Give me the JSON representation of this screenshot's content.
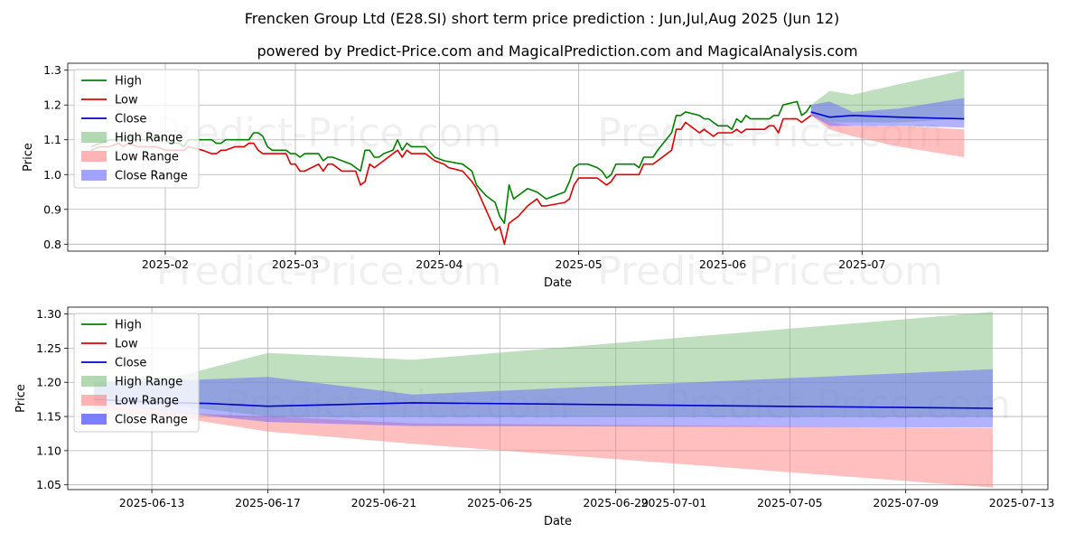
{
  "figure": {
    "title": "Frencken Group Ltd (E28.SI) short term price prediction : Jun,Jul,Aug 2025 (Jun 12)",
    "subtitle": "powered by Predict-Price.com and MagicalPrediction.com and MagicalAnalysis.com",
    "watermark": "Predict-Price.com",
    "colors": {
      "high": "#008000",
      "low": "#e00000",
      "close": "#0000cc",
      "high_range": "#80c080",
      "low_range": "#ff8080",
      "close_range": "#6666ff"
    }
  },
  "chart_data": [
    {
      "type": "line",
      "name": "history",
      "xlabel": "Date",
      "ylabel": "Price",
      "xlim": [
        -21,
        190
      ],
      "ylim": [
        0.78,
        1.32
      ],
      "xticks": [
        {
          "pos": 0,
          "label": "2025-02"
        },
        {
          "pos": 28,
          "label": "2025-03"
        },
        {
          "pos": 59,
          "label": "2025-04"
        },
        {
          "pos": 89,
          "label": "2025-05"
        },
        {
          "pos": 120,
          "label": "2025-06"
        },
        {
          "pos": 150,
          "label": "2025-07"
        }
      ],
      "yticks": [
        0.8,
        0.9,
        1.0,
        1.1,
        1.2,
        1.3
      ],
      "legend": [
        "High",
        "Low",
        "Close",
        "High Range",
        "Low Range",
        "Close Range"
      ],
      "legend_location": "upper left",
      "high": [
        [
          -16,
          1.08
        ],
        [
          -14,
          1.09
        ],
        [
          -12,
          1.1
        ],
        [
          -10,
          1.1
        ],
        [
          -9,
          1.1
        ],
        [
          -8,
          1.11
        ],
        [
          -6,
          1.1
        ],
        [
          -4,
          1.1
        ],
        [
          -2,
          1.11
        ],
        [
          0,
          1.1
        ],
        [
          1,
          1.09
        ],
        [
          3,
          1.09
        ],
        [
          4,
          1.08
        ],
        [
          5,
          1.1
        ],
        [
          8,
          1.1
        ],
        [
          10,
          1.1
        ],
        [
          11,
          1.09
        ],
        [
          12,
          1.09
        ],
        [
          13,
          1.1
        ],
        [
          15,
          1.1
        ],
        [
          17,
          1.1
        ],
        [
          18,
          1.1
        ],
        [
          19,
          1.12
        ],
        [
          20,
          1.12
        ],
        [
          21,
          1.11
        ],
        [
          22,
          1.08
        ],
        [
          23,
          1.07
        ],
        [
          26,
          1.07
        ],
        [
          27,
          1.06
        ],
        [
          28,
          1.06
        ],
        [
          29,
          1.05
        ],
        [
          30,
          1.06
        ],
        [
          33,
          1.06
        ],
        [
          34,
          1.04
        ],
        [
          35,
          1.05
        ],
        [
          36,
          1.05
        ],
        [
          38,
          1.04
        ],
        [
          40,
          1.03
        ],
        [
          41,
          1.02
        ],
        [
          42,
          1.01
        ],
        [
          43,
          1.07
        ],
        [
          44,
          1.07
        ],
        [
          45,
          1.05
        ],
        [
          46,
          1.05
        ],
        [
          47,
          1.06
        ],
        [
          49,
          1.07
        ],
        [
          50,
          1.1
        ],
        [
          51,
          1.07
        ],
        [
          52,
          1.09
        ],
        [
          53,
          1.08
        ],
        [
          56,
          1.08
        ],
        [
          58,
          1.05
        ],
        [
          60,
          1.04
        ],
        [
          64,
          1.03
        ],
        [
          66,
          1.01
        ],
        [
          67,
          0.97
        ],
        [
          69,
          0.94
        ],
        [
          71,
          0.92
        ],
        [
          72,
          0.88
        ],
        [
          73,
          0.86
        ],
        [
          74,
          0.97
        ],
        [
          75,
          0.93
        ],
        [
          76,
          0.94
        ],
        [
          78,
          0.96
        ],
        [
          80,
          0.95
        ],
        [
          81,
          0.94
        ],
        [
          82,
          0.93
        ],
        [
          86,
          0.95
        ],
        [
          87,
          0.98
        ],
        [
          88,
          1.02
        ],
        [
          89,
          1.03
        ],
        [
          91,
          1.03
        ],
        [
          93,
          1.02
        ],
        [
          94,
          1.01
        ],
        [
          95,
          0.99
        ],
        [
          96,
          1.0
        ],
        [
          97,
          1.03
        ],
        [
          100,
          1.03
        ],
        [
          101,
          1.03
        ],
        [
          102,
          1.02
        ],
        [
          103,
          1.05
        ],
        [
          105,
          1.05
        ],
        [
          106,
          1.07
        ],
        [
          109,
          1.12
        ],
        [
          110,
          1.17
        ],
        [
          111,
          1.17
        ],
        [
          112,
          1.18
        ],
        [
          115,
          1.17
        ],
        [
          116,
          1.16
        ],
        [
          117,
          1.16
        ],
        [
          118,
          1.15
        ],
        [
          119,
          1.14
        ],
        [
          121,
          1.14
        ],
        [
          122,
          1.13
        ],
        [
          123,
          1.16
        ],
        [
          124,
          1.15
        ],
        [
          125,
          1.17
        ],
        [
          126,
          1.16
        ],
        [
          129,
          1.16
        ],
        [
          130,
          1.16
        ],
        [
          131,
          1.17
        ],
        [
          132,
          1.17
        ],
        [
          133,
          1.2
        ],
        [
          136,
          1.21
        ],
        [
          137,
          1.17
        ],
        [
          138,
          1.18
        ],
        [
          139,
          1.2
        ]
      ],
      "low": [
        [
          -16,
          1.07
        ],
        [
          -14,
          1.08
        ],
        [
          -12,
          1.08
        ],
        [
          -10,
          1.09
        ],
        [
          -9,
          1.08
        ],
        [
          -8,
          1.09
        ],
        [
          -6,
          1.08
        ],
        [
          -4,
          1.08
        ],
        [
          -2,
          1.08
        ],
        [
          0,
          1.07
        ],
        [
          1,
          1.07
        ],
        [
          3,
          1.07
        ],
        [
          4,
          1.07
        ],
        [
          5,
          1.08
        ],
        [
          8,
          1.07
        ],
        [
          10,
          1.06
        ],
        [
          11,
          1.06
        ],
        [
          12,
          1.07
        ],
        [
          13,
          1.07
        ],
        [
          15,
          1.08
        ],
        [
          17,
          1.08
        ],
        [
          18,
          1.09
        ],
        [
          19,
          1.09
        ],
        [
          20,
          1.07
        ],
        [
          21,
          1.06
        ],
        [
          22,
          1.06
        ],
        [
          23,
          1.06
        ],
        [
          26,
          1.06
        ],
        [
          27,
          1.03
        ],
        [
          28,
          1.03
        ],
        [
          29,
          1.01
        ],
        [
          30,
          1.01
        ],
        [
          33,
          1.03
        ],
        [
          34,
          1.01
        ],
        [
          35,
          1.03
        ],
        [
          36,
          1.03
        ],
        [
          38,
          1.01
        ],
        [
          40,
          1.01
        ],
        [
          41,
          1.01
        ],
        [
          42,
          0.97
        ],
        [
          43,
          0.98
        ],
        [
          44,
          1.03
        ],
        [
          45,
          1.02
        ],
        [
          46,
          1.03
        ],
        [
          47,
          1.04
        ],
        [
          49,
          1.06
        ],
        [
          50,
          1.07
        ],
        [
          51,
          1.05
        ],
        [
          52,
          1.07
        ],
        [
          53,
          1.06
        ],
        [
          56,
          1.06
        ],
        [
          58,
          1.04
        ],
        [
          60,
          1.03
        ],
        [
          61,
          1.02
        ],
        [
          64,
          1.01
        ],
        [
          66,
          0.98
        ],
        [
          67,
          0.96
        ],
        [
          69,
          0.9
        ],
        [
          71,
          0.84
        ],
        [
          72,
          0.85
        ],
        [
          73,
          0.8
        ],
        [
          74,
          0.86
        ],
        [
          75,
          0.87
        ],
        [
          76,
          0.88
        ],
        [
          78,
          0.91
        ],
        [
          80,
          0.93
        ],
        [
          81,
          0.91
        ],
        [
          82,
          0.91
        ],
        [
          86,
          0.92
        ],
        [
          87,
          0.93
        ],
        [
          88,
          0.97
        ],
        [
          89,
          0.99
        ],
        [
          91,
          0.99
        ],
        [
          93,
          0.99
        ],
        [
          94,
          0.98
        ],
        [
          95,
          0.97
        ],
        [
          96,
          0.98
        ],
        [
          97,
          1.0
        ],
        [
          100,
          1.0
        ],
        [
          101,
          1.0
        ],
        [
          102,
          1.0
        ],
        [
          103,
          1.03
        ],
        [
          105,
          1.03
        ],
        [
          106,
          1.04
        ],
        [
          109,
          1.07
        ],
        [
          110,
          1.13
        ],
        [
          111,
          1.13
        ],
        [
          112,
          1.15
        ],
        [
          115,
          1.12
        ],
        [
          116,
          1.13
        ],
        [
          117,
          1.12
        ],
        [
          118,
          1.11
        ],
        [
          119,
          1.12
        ],
        [
          121,
          1.12
        ],
        [
          122,
          1.12
        ],
        [
          123,
          1.13
        ],
        [
          124,
          1.12
        ],
        [
          125,
          1.13
        ],
        [
          126,
          1.13
        ],
        [
          129,
          1.13
        ],
        [
          130,
          1.14
        ],
        [
          131,
          1.14
        ],
        [
          132,
          1.12
        ],
        [
          133,
          1.16
        ],
        [
          136,
          1.16
        ],
        [
          137,
          1.15
        ],
        [
          138,
          1.16
        ],
        [
          139,
          1.17
        ]
      ],
      "close": [
        [
          139,
          1.18
        ],
        [
          143,
          1.165
        ],
        [
          148,
          1.17
        ],
        [
          158,
          1.165
        ],
        [
          172,
          1.16
        ]
      ],
      "high_range": {
        "x": [
          139,
          143,
          148,
          158,
          172
        ],
        "upper": [
          1.2,
          1.24,
          1.23,
          1.26,
          1.3
        ],
        "lower": [
          1.17,
          1.15,
          1.15,
          1.15,
          1.16
        ]
      },
      "low_range": {
        "x": [
          139,
          143,
          148,
          158,
          172
        ],
        "upper": [
          1.18,
          1.15,
          1.14,
          1.14,
          1.13
        ],
        "lower": [
          1.17,
          1.13,
          1.11,
          1.08,
          1.05
        ]
      },
      "close_range": {
        "x": [
          139,
          143,
          148,
          158,
          172
        ],
        "upper": [
          1.2,
          1.21,
          1.18,
          1.19,
          1.22
        ],
        "lower": [
          1.17,
          1.14,
          1.14,
          1.14,
          1.135
        ]
      }
    },
    {
      "type": "line",
      "name": "forecast",
      "xlabel": "Date",
      "ylabel": "Price",
      "xlim": [
        -1.9,
        31.9
      ],
      "ylim": [
        1.043,
        1.31
      ],
      "xticks": [
        {
          "pos": 1,
          "label": "2025-06-13"
        },
        {
          "pos": 5,
          "label": "2025-06-17"
        },
        {
          "pos": 9,
          "label": "2025-06-21"
        },
        {
          "pos": 13,
          "label": "2025-06-25"
        },
        {
          "pos": 17,
          "label": "2025-06-29"
        },
        {
          "pos": 19,
          "label": "2025-07-01"
        },
        {
          "pos": 23,
          "label": "2025-07-05"
        },
        {
          "pos": 27,
          "label": "2025-07-09"
        },
        {
          "pos": 31,
          "label": "2025-07-13"
        }
      ],
      "yticks": [
        1.05,
        1.1,
        1.15,
        1.2,
        1.25,
        1.3
      ],
      "legend": [
        "High",
        "Low",
        "Close",
        "High Range",
        "Low Range",
        "Close Range"
      ],
      "legend_location": "upper left",
      "high": [],
      "low": [],
      "close": [
        [
          -1,
          1.175
        ],
        [
          0,
          1.173
        ],
        [
          1,
          1.171
        ],
        [
          2,
          1.17
        ],
        [
          3,
          1.169
        ],
        [
          4,
          1.167
        ],
        [
          5,
          1.165
        ],
        [
          10,
          1.17
        ],
        [
          30,
          1.162
        ]
      ],
      "high_range": {
        "x": [
          -1,
          2,
          5,
          10,
          30
        ],
        "upper": [
          1.2,
          1.21,
          1.243,
          1.233,
          1.303
        ],
        "lower": [
          1.18,
          1.165,
          1.15,
          1.15,
          1.15
        ]
      },
      "low_range": {
        "x": [
          -1,
          2,
          5,
          10,
          30
        ],
        "upper": [
          1.17,
          1.155,
          1.15,
          1.14,
          1.133
        ],
        "lower": [
          1.16,
          1.148,
          1.128,
          1.11,
          1.046
        ]
      },
      "close_range": {
        "x": [
          -1,
          2,
          5,
          10,
          30
        ],
        "upper": [
          1.2,
          1.203,
          1.208,
          1.182,
          1.219
        ],
        "lower": [
          1.17,
          1.155,
          1.142,
          1.136,
          1.134
        ]
      }
    }
  ]
}
